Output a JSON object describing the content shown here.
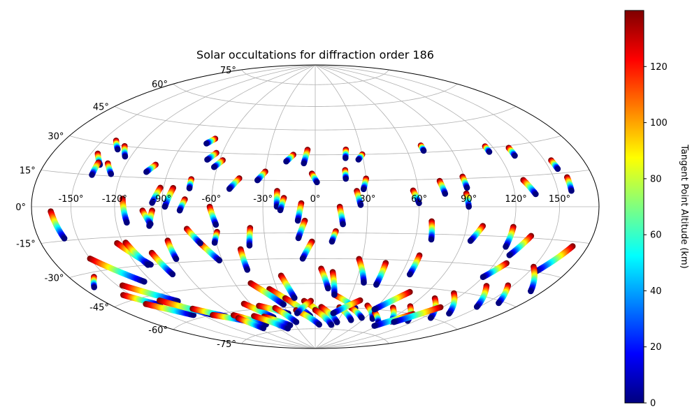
{
  "chart_data": {
    "type": "scatter",
    "projection": "hammer",
    "title": "Solar occultations for diffraction order 186",
    "grid": true,
    "x_ticks": [
      "-150°",
      "-120°",
      "-90°",
      "-60°",
      "-30°",
      "0°",
      "30°",
      "60°",
      "90°",
      "120°",
      "150°"
    ],
    "x_tick_values": [
      -150,
      -120,
      -90,
      -60,
      -30,
      0,
      30,
      60,
      90,
      120,
      150
    ],
    "y_ticks": [
      "-75°",
      "-60°",
      "-45°",
      "-30°",
      "-15°",
      "0°",
      "15°",
      "30°",
      "45°",
      "60°",
      "75°"
    ],
    "y_tick_values": [
      -75,
      -60,
      -45,
      -30,
      -15,
      0,
      15,
      30,
      45,
      60,
      75
    ],
    "xlim": [
      -180,
      180
    ],
    "ylim": [
      -90,
      90
    ],
    "colormap": "jet",
    "colorbar": {
      "label": "Tangent Point Altitude (km)",
      "range": [
        0,
        140
      ],
      "ticks": [
        "0",
        "20",
        "40",
        "60",
        "80",
        "100",
        "120"
      ],
      "tick_values": [
        0,
        20,
        40,
        60,
        80,
        100,
        120
      ]
    },
    "tracks": [
      {
        "lon": [
          -165,
          -160
        ],
        "lat": [
          -2,
          -14
        ]
      },
      {
        "lon": [
          -145,
          -138
        ],
        "lat": [
          25,
          20
        ]
      },
      {
        "lon": [
          -140,
          -133
        ],
        "lat": [
          32,
          28
        ]
      },
      {
        "lon": [
          -140,
          -140
        ],
        "lat": [
          21,
          15
        ]
      },
      {
        "lon": [
          -130,
          -124
        ],
        "lat": [
          30,
          25
        ]
      },
      {
        "lon": [
          -133,
          -127
        ],
        "lat": [
          21,
          16
        ]
      },
      {
        "lon": [
          -115,
          -113
        ],
        "lat": [
          4,
          -8
        ]
      },
      {
        "lon": [
          -100,
          -104
        ],
        "lat": [
          22,
          18
        ]
      },
      {
        "lon": [
          -92,
          -96
        ],
        "lat": [
          10,
          2
        ]
      },
      {
        "lon": [
          -96,
          -99
        ],
        "lat": [
          -2,
          -10
        ]
      },
      {
        "lon": [
          -84,
          -88
        ],
        "lat": [
          10,
          0
        ]
      },
      {
        "lon": [
          -76,
          -79
        ],
        "lat": [
          4,
          -2
        ]
      },
      {
        "lon": [
          -74,
          -74
        ],
        "lat": [
          15,
          10
        ]
      },
      {
        "lon": [
          -70,
          -74
        ],
        "lat": [
          38,
          35
        ]
      },
      {
        "lon": [
          -64,
          -68
        ],
        "lat": [
          30,
          26
        ]
      },
      {
        "lon": [
          -58,
          -62
        ],
        "lat": [
          26,
          22
        ]
      },
      {
        "lon": [
          -45,
          -50
        ],
        "lat": [
          16,
          10
        ]
      },
      {
        "lon": [
          -30,
          -34
        ],
        "lat": [
          20,
          15
        ]
      },
      {
        "lon": [
          -22,
          -22
        ],
        "lat": [
          9,
          0
        ]
      },
      {
        "lon": [
          -18,
          -20
        ],
        "lat": [
          5,
          -2
        ]
      },
      {
        "lon": [
          -14,
          -18
        ],
        "lat": [
          30,
          26
        ]
      },
      {
        "lon": [
          -5,
          -7
        ],
        "lat": [
          33,
          25
        ]
      },
      {
        "lon": [
          -2,
          1
        ],
        "lat": [
          19,
          14
        ]
      },
      {
        "lon": [
          -8,
          -10
        ],
        "lat": [
          2,
          -8
        ]
      },
      {
        "lon": [
          18,
          18
        ],
        "lat": [
          21,
          16
        ]
      },
      {
        "lon": [
          20,
          19
        ],
        "lat": [
          33,
          28
        ]
      },
      {
        "lon": [
          30,
          27
        ],
        "lat": [
          30,
          27
        ]
      },
      {
        "lon": [
          30,
          28
        ],
        "lat": [
          16,
          10
        ]
      },
      {
        "lon": [
          24,
          26
        ],
        "lat": [
          9,
          1
        ]
      },
      {
        "lon": [
          57,
          60
        ],
        "lat": [
          9,
          2
        ]
      },
      {
        "lon": [
          71,
          71
        ],
        "lat": [
          34,
          31
        ]
      },
      {
        "lon": [
          74,
          76
        ],
        "lat": [
          14,
          7
        ]
      },
      {
        "lon": [
          89,
          90
        ],
        "lat": [
          16,
          10
        ]
      },
      {
        "lon": [
          89,
          90
        ],
        "lat": [
          7,
          0
        ]
      },
      {
        "lon": [
          115,
          115
        ],
        "lat": [
          31,
          28
        ]
      },
      {
        "lon": [
          131,
          131
        ],
        "lat": [
          29,
          25
        ]
      },
      {
        "lon": [
          128,
          134
        ],
        "lat": [
          13,
          6
        ]
      },
      {
        "lon": [
          155,
          156
        ],
        "lat": [
          21,
          17
        ]
      },
      {
        "lon": [
          160,
          160
        ],
        "lat": [
          13,
          7
        ]
      },
      {
        "lon": [
          -102,
          -98
        ],
        "lat": [
          -2,
          -9
        ]
      },
      {
        "lon": [
          -61,
          -58
        ],
        "lat": [
          0,
          -10
        ]
      },
      {
        "lon": [
          -38,
          -40
        ],
        "lat": [
          -12,
          -22
        ]
      },
      {
        "lon": [
          -58,
          -61
        ],
        "lat": [
          -14,
          -20
        ]
      },
      {
        "lon": [
          -6,
          -10
        ],
        "lat": [
          -8,
          -18
        ]
      },
      {
        "lon": [
          12,
          10
        ],
        "lat": [
          -14,
          -20
        ]
      },
      {
        "lon": [
          14,
          16
        ],
        "lat": [
          0,
          -10
        ]
      },
      {
        "lon": [
          68,
          70
        ],
        "lat": [
          -8,
          -18
        ]
      },
      {
        "lon": [
          100,
          95
        ],
        "lat": [
          -10,
          -18
        ]
      },
      {
        "lon": [
          120,
          120
        ],
        "lat": [
          -10,
          -20
        ]
      },
      {
        "lon": [
          -124,
          -110
        ],
        "lat": [
          -18,
          -30
        ]
      },
      {
        "lon": [
          -118,
          -112
        ],
        "lat": [
          -18,
          -30
        ]
      },
      {
        "lon": [
          -90,
          -90
        ],
        "lat": [
          -18,
          -28
        ]
      },
      {
        "lon": [
          -104,
          -100
        ],
        "lat": [
          -24,
          -36
        ]
      },
      {
        "lon": [
          -70,
          -62
        ],
        "lat": [
          -20,
          -30
        ]
      },
      {
        "lon": [
          -76,
          -70
        ],
        "lat": [
          -12,
          -20
        ]
      },
      {
        "lon": [
          -46,
          -46
        ],
        "lat": [
          -24,
          -36
        ]
      },
      {
        "lon": [
          -2,
          -8
        ],
        "lat": [
          -20,
          -30
        ]
      },
      {
        "lon": [
          28,
          36
        ],
        "lat": [
          -30,
          -44
        ]
      },
      {
        "lon": [
          66,
          66
        ],
        "lat": [
          -27,
          -38
        ]
      },
      {
        "lon": [
          46,
          46
        ],
        "lat": [
          -32,
          -45
        ]
      },
      {
        "lon": [
          4,
          10
        ],
        "lat": [
          -36,
          -48
        ]
      },
      {
        "lon": [
          134,
          126
        ],
        "lat": [
          -14,
          -24
        ]
      },
      {
        "lon": [
          128,
          120
        ],
        "lat": [
          -28,
          -36
        ]
      },
      {
        "lon": [
          168,
          155
        ],
        "lat": [
          -17,
          -30
        ]
      },
      {
        "lon": [
          -160,
          -170
        ],
        "lat": [
          -32,
          -36
        ]
      },
      {
        "lon": [
          -150,
          -126
        ],
        "lat": [
          -24,
          -38
        ]
      },
      {
        "lon": [
          -156,
          -140
        ],
        "lat": [
          -42,
          -50
        ]
      },
      {
        "lon": [
          -146,
          -120
        ],
        "lat": [
          -38,
          -50
        ]
      },
      {
        "lon": [
          -150,
          -128
        ],
        "lat": [
          -48,
          -58
        ]
      },
      {
        "lon": [
          -134,
          -110
        ],
        "lat": [
          -48,
          -60
        ]
      },
      {
        "lon": [
          -118,
          -100
        ],
        "lat": [
          -55,
          -62
        ]
      },
      {
        "lon": [
          -110,
          -88
        ],
        "lat": [
          -60,
          -66
        ]
      },
      {
        "lon": [
          -90,
          -70
        ],
        "lat": [
          -62,
          -70
        ]
      },
      {
        "lon": [
          -66,
          -50
        ],
        "lat": [
          -56,
          -66
        ]
      },
      {
        "lon": [
          -54,
          -30
        ],
        "lat": [
          -58,
          -64
        ]
      },
      {
        "lon": [
          -40,
          -26
        ],
        "lat": [
          -60,
          -70
        ]
      },
      {
        "lon": [
          -36,
          -14
        ],
        "lat": [
          -48,
          -62
        ]
      },
      {
        "lon": [
          -26,
          -6
        ],
        "lat": [
          -54,
          -66
        ]
      },
      {
        "lon": [
          -10,
          14
        ],
        "lat": [
          -56,
          -68
        ]
      },
      {
        "lon": [
          6,
          30
        ],
        "lat": [
          -60,
          -70
        ]
      },
      {
        "lon": [
          16,
          40
        ],
        "lat": [
          -52,
          -60
        ]
      },
      {
        "lon": [
          24,
          46
        ],
        "lat": [
          -60,
          -68
        ]
      },
      {
        "lon": [
          36,
          56
        ],
        "lat": [
          -60,
          -66
        ]
      },
      {
        "lon": [
          50,
          70
        ],
        "lat": [
          -58,
          -66
        ]
      },
      {
        "lon": [
          64,
          84
        ],
        "lat": [
          -62,
          -68
        ]
      },
      {
        "lon": [
          76,
          96
        ],
        "lat": [
          -58,
          -66
        ]
      },
      {
        "lon": [
          90,
          112
        ],
        "lat": [
          -56,
          -64
        ]
      },
      {
        "lon": [
          102,
          128
        ],
        "lat": [
          -50,
          -60
        ]
      },
      {
        "lon": [
          112,
          136
        ],
        "lat": [
          -46,
          -56
        ]
      },
      {
        "lon": [
          130,
          148
        ],
        "lat": [
          -40,
          -50
        ]
      },
      {
        "lon": [
          146,
          160
        ],
        "lat": [
          -38,
          -46
        ]
      },
      {
        "lon": [
          150,
          170
        ],
        "lat": [
          -28,
          -38
        ]
      },
      {
        "lon": [
          -60,
          -38
        ],
        "lat": [
          -65,
          -72
        ]
      },
      {
        "lon": [
          -20,
          6
        ],
        "lat": [
          -62,
          -72
        ]
      },
      {
        "lon": [
          0,
          24
        ],
        "lat": [
          -62,
          -72
        ]
      },
      {
        "lon": [
          -4,
          -20
        ],
        "lat": [
          -56,
          -64
        ]
      },
      {
        "lon": [
          40,
          20
        ],
        "lat": [
          -55,
          -64
        ]
      },
      {
        "lon": [
          -48,
          -30
        ],
        "lat": [
          -44,
          -58
        ]
      },
      {
        "lon": [
          -70,
          -46
        ],
        "lat": [
          -64,
          -74
        ]
      },
      {
        "lon": [
          -90,
          -82
        ],
        "lat": [
          -64,
          -72
        ]
      },
      {
        "lon": [
          76,
          60
        ],
        "lat": [
          -48,
          -60
        ]
      },
      {
        "lon": [
          12,
          16
        ],
        "lat": [
          -38,
          -52
        ]
      },
      {
        "lon": [
          -24,
          -18
        ],
        "lat": [
          -40,
          -54
        ]
      },
      {
        "lon": [
          104,
          86
        ],
        "lat": [
          -60,
          -70
        ]
      },
      {
        "lon": [
          118,
          100
        ],
        "lat": [
          -54,
          -66
        ]
      }
    ]
  }
}
